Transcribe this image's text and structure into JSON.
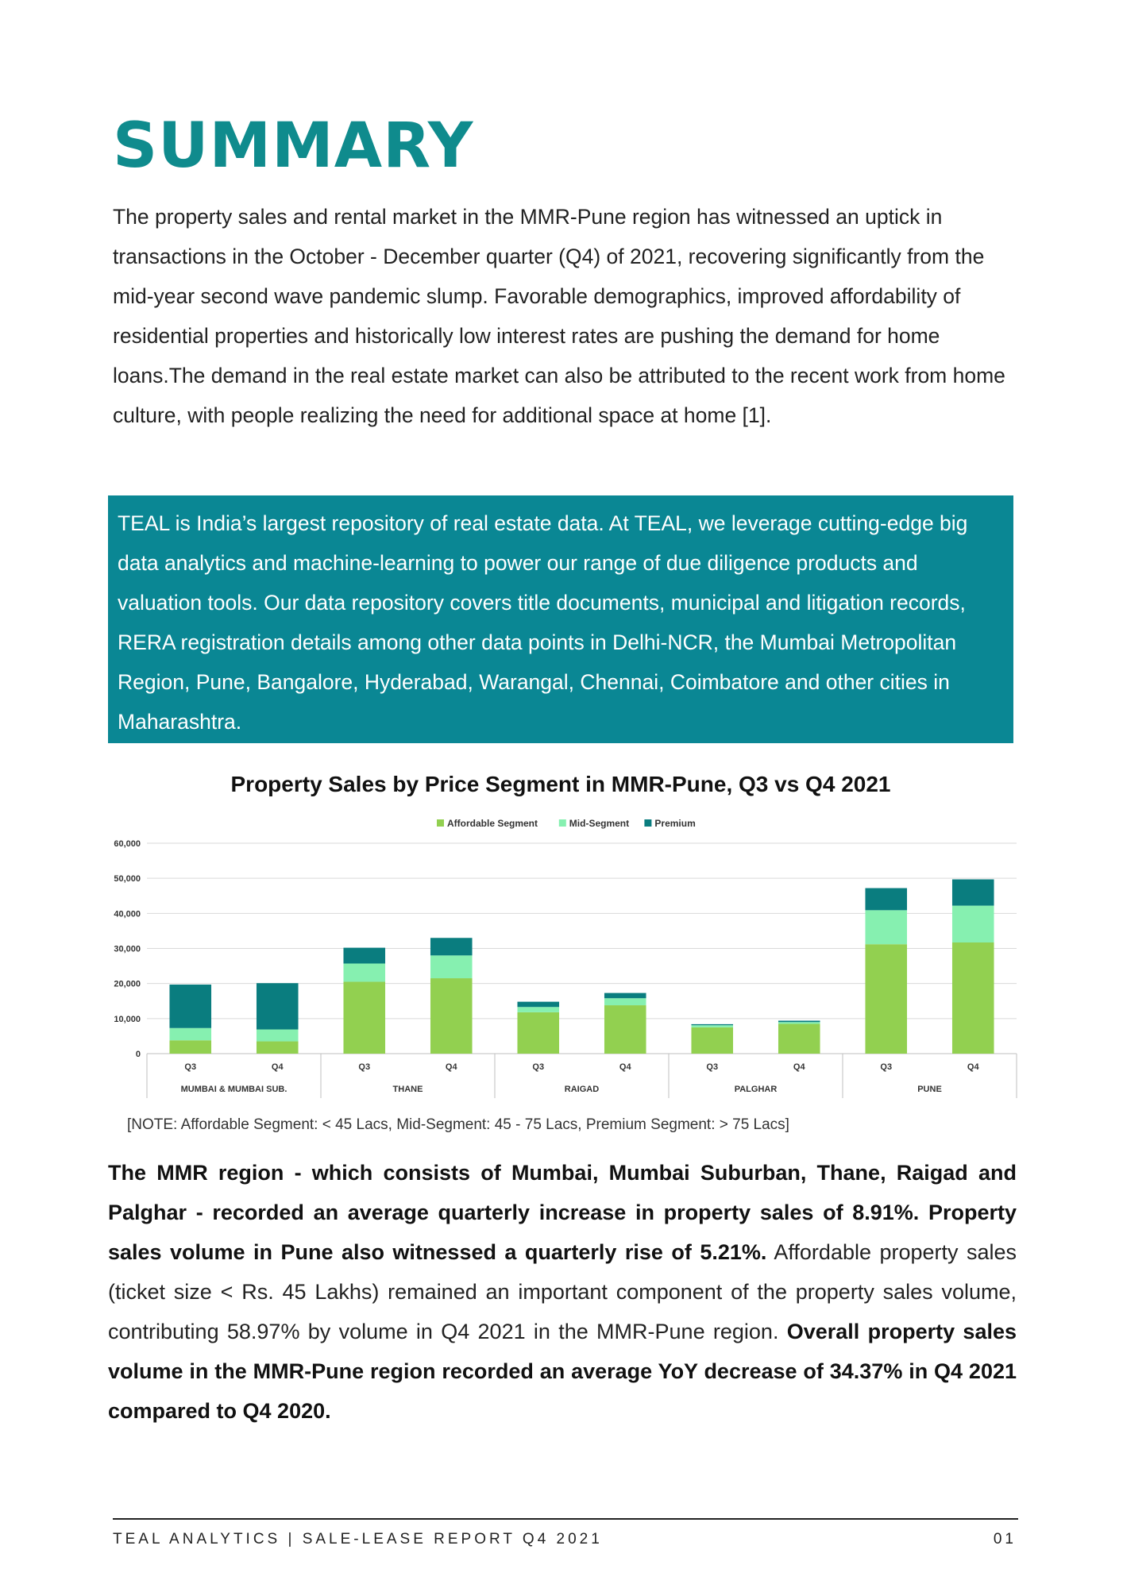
{
  "heading": "SUMMARY",
  "intro": "The property sales and rental market in the MMR-Pune region has witnessed an uptick in transactions in the October - December quarter (Q4) of 2021, recovering significantly from the mid-year second wave pandemic slump. Favorable demographics, improved affordability of residential properties and historically low interest rates are pushing the demand for home loans.The demand in the real estate market can also be attributed to the recent work from home culture, with people realizing the need for additional space at home [1].",
  "teal_box": "TEAL is India’s largest repository of real estate data. At TEAL, we leverage cutting-edge big data analytics and machine-learning to power our range of due diligence products and valuation tools. Our data repository covers title documents, municipal and litigation records, RERA registration details among other data points in Delhi-NCR, the Mumbai Metropolitan Region, Pune, Bangalore, Hyderabad, Warangal, Chennai, Coimbatore and other cities in Maharashtra.",
  "chart_title": "Property Sales by Price Segment in MMR-Pune,  Q3 vs Q4  2021",
  "chart_data": {
    "type": "bar",
    "stacked": true,
    "groups": [
      "MUMBAI & MUMBAI SUB.",
      "THANE",
      "RAIGAD",
      "PALGHAR",
      "PUNE"
    ],
    "categories": [
      "Q3",
      "Q4",
      "Q3",
      "Q4",
      "Q3",
      "Q4",
      "Q3",
      "Q4",
      "Q3",
      "Q4"
    ],
    "series": [
      {
        "name": "Affordable Segment",
        "color": "#92d050",
        "values": [
          3800,
          3500,
          20500,
          21500,
          11800,
          13800,
          7500,
          8500,
          31200,
          31700
        ]
      },
      {
        "name": "Mid-Segment",
        "color": "#86f0b0",
        "values": [
          3500,
          3400,
          5200,
          6500,
          1500,
          2000,
          600,
          500,
          9700,
          10500
        ]
      },
      {
        "name": "Premium",
        "color": "#0a7d7f",
        "values": [
          12400,
          13200,
          4500,
          5000,
          1500,
          1500,
          300,
          400,
          6300,
          7500
        ]
      }
    ],
    "yticks": [
      "0",
      "10,000",
      "20,000",
      "30,000",
      "40,000",
      "50,000",
      "60,000"
    ],
    "ylim": [
      0,
      60000
    ],
    "grid": true,
    "legend_position": "top-center"
  },
  "note": "[NOTE: Affordable Segment: < 45 Lacs, Mid-Segment: 45 - 75 Lacs, Premium Segment: > 75 Lacs]",
  "body": {
    "b1": "The MMR region - which consists of Mumbai, Mumbai Suburban, Thane, Raigad and Palghar - recorded an average quarterly increase in property sales of 8.91%. Property sales volume in Pune also witnessed a quarterly rise of 5.21%.",
    "t1": " Affordable property sales (ticket size < Rs. 45 Lakhs) remained an important component of the property sales volume, contributing 58.97% by volume in Q4 2021 in the MMR-Pune region. ",
    "b2": "Overall property sales volume in the MMR-Pune region recorded an average YoY decrease of 34.37% in Q4 2021 compared to Q4 2020."
  },
  "footer": {
    "left": "TEAL ANALYTICS | SALE-LEASE REPORT Q4 2021",
    "right": "01"
  }
}
